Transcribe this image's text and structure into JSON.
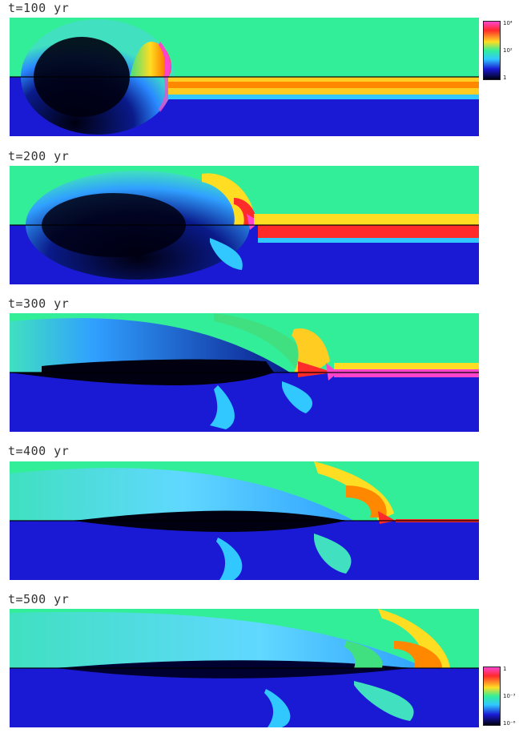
{
  "panels": [
    {
      "label": "t=100 yr"
    },
    {
      "label": "t=200 yr"
    },
    {
      "label": "t=300 yr"
    },
    {
      "label": "t=400 yr"
    },
    {
      "label": "t=500 yr"
    }
  ],
  "colorbars": [
    {
      "ticks": [
        "10⁴",
        "10²",
        "1"
      ]
    },
    {
      "ticks": [
        "1",
        "10⁻³",
        "10⁻⁶"
      ]
    }
  ],
  "colors": {
    "ambient_top": "#33ee99",
    "ambient_bottom": "#1a1ad4",
    "jet_beam": "#ff2a2a",
    "hot": "#ff44cc",
    "cold": "#000010"
  }
}
